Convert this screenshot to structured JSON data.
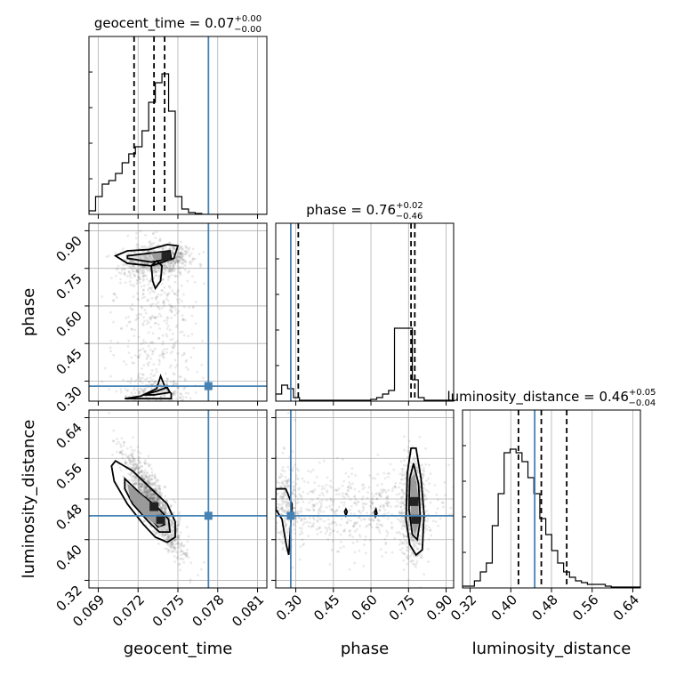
{
  "chart_data": {
    "type": "corner",
    "parameters": [
      "geocent_time",
      "phase",
      "luminosity_distance"
    ],
    "titles": {
      "geocent_time": {
        "prefix": "geocent_time = 0.07",
        "plus": "+0.00",
        "minus": "−0.00"
      },
      "phase": {
        "prefix": "phase = 0.76",
        "plus": "+0.02",
        "minus": "−0.46"
      },
      "luminosity_distance": {
        "prefix": "luminosity_distance = 0.46",
        "plus": "+0.05",
        "minus": "−0.04"
      }
    },
    "axis_labels": {
      "x": [
        "geocent_time",
        "phase",
        "luminosity_distance"
      ],
      "y": [
        "phase",
        "luminosity_distance"
      ]
    },
    "ranges": {
      "geocent_time": [
        0.0683,
        0.0817
      ],
      "phase": [
        0.22,
        0.93
      ],
      "luminosity_distance": [
        0.305,
        0.655
      ]
    },
    "ticks": {
      "geocent_time": {
        "values": [
          0.069,
          0.072,
          0.075,
          0.078,
          0.081
        ],
        "labels": [
          "0.069",
          "0.072",
          "0.075",
          "0.078",
          "0.081"
        ]
      },
      "phase": {
        "values": [
          0.3,
          0.45,
          0.6,
          0.75,
          0.9
        ],
        "labels": [
          "0.30",
          "0.45",
          "0.60",
          "0.75",
          "0.90"
        ]
      },
      "luminosity_distance": {
        "values": [
          0.32,
          0.4,
          0.48,
          0.56,
          0.64
        ],
        "labels": [
          "0.32",
          "0.40",
          "0.48",
          "0.56",
          "0.64"
        ]
      }
    },
    "truths": {
      "geocent_time": 0.0773,
      "phase": 0.28,
      "luminosity_distance": 0.447
    },
    "quantiles": {
      "geocent_time": [
        0.0717,
        0.0732,
        0.074
      ],
      "phase": [
        0.31,
        0.76,
        0.775
      ],
      "luminosity_distance": [
        0.415,
        0.46,
        0.51
      ]
    },
    "histograms": {
      "geocent_time": {
        "edges_start": 0.0683,
        "bin_width": 0.0005,
        "counts": [
          0.02,
          0.1,
          0.17,
          0.19,
          0.23,
          0.29,
          0.34,
          0.38,
          0.47,
          0.63,
          0.74,
          0.79,
          0.58,
          0.1,
          0.03,
          0.01,
          0.005,
          0,
          0,
          0,
          0,
          0,
          0,
          0,
          0,
          0,
          0
        ]
      },
      "phase": {
        "edges_start": 0.22,
        "bin_width": 0.0237,
        "counts": [
          0.04,
          0.09,
          0.07,
          0.02,
          0.005,
          0.005,
          0.005,
          0.005,
          0.005,
          0.005,
          0.005,
          0.005,
          0.005,
          0.005,
          0.005,
          0.005,
          0.01,
          0.02,
          0.04,
          0.06,
          0.41,
          0.41,
          0.41,
          0.12,
          0.02,
          0.005,
          0.005,
          0.005,
          0.005,
          0.005
        ]
      },
      "luminosity_distance": {
        "edges_start": 0.305,
        "bin_width": 0.0117,
        "counts": [
          0.01,
          0.01,
          0.04,
          0.09,
          0.14,
          0.35,
          0.53,
          0.76,
          0.78,
          0.76,
          0.71,
          0.62,
          0.53,
          0.39,
          0.3,
          0.21,
          0.14,
          0.09,
          0.06,
          0.04,
          0.03,
          0.02,
          0.02,
          0.02,
          0.01,
          0.005,
          0.005,
          0.005,
          0.005,
          0.005
        ]
      }
    },
    "grid": true,
    "colors": {
      "truth": "#4682b4",
      "hist": "#000000",
      "points": "#555555",
      "density": "#9a9a9a",
      "grid": "#b0b0b0"
    }
  }
}
